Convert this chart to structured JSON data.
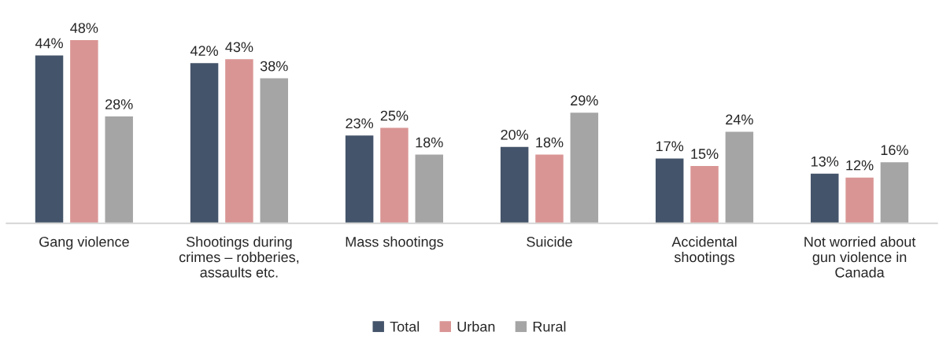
{
  "chart_data": {
    "type": "bar",
    "categories": [
      "Gang violence",
      "Shootings during\ncrimes – robberies,\nassaults etc.",
      "Mass shootings",
      "Suicide",
      "Accidental\nshootings",
      "Not worried about\ngun violence in\nCanada"
    ],
    "series": [
      {
        "name": "Total",
        "color": "#44546a",
        "values": [
          44,
          42,
          23,
          20,
          17,
          13
        ],
        "value_labels": [
          "44%",
          "42%",
          "23%",
          "20%",
          "17%",
          "13%"
        ]
      },
      {
        "name": "Urban",
        "color": "#d99594",
        "values": [
          48,
          43,
          25,
          18,
          15,
          12
        ],
        "value_labels": [
          "48%",
          "43%",
          "25%",
          "18%",
          "15%",
          "12%"
        ]
      },
      {
        "name": "Rural",
        "color": "#a5a5a5",
        "values": [
          28,
          38,
          18,
          29,
          24,
          16
        ],
        "value_labels": [
          "28%",
          "38%",
          "18%",
          "29%",
          "24%",
          "16%"
        ]
      }
    ],
    "legend": "bottom",
    "grid": false
  }
}
